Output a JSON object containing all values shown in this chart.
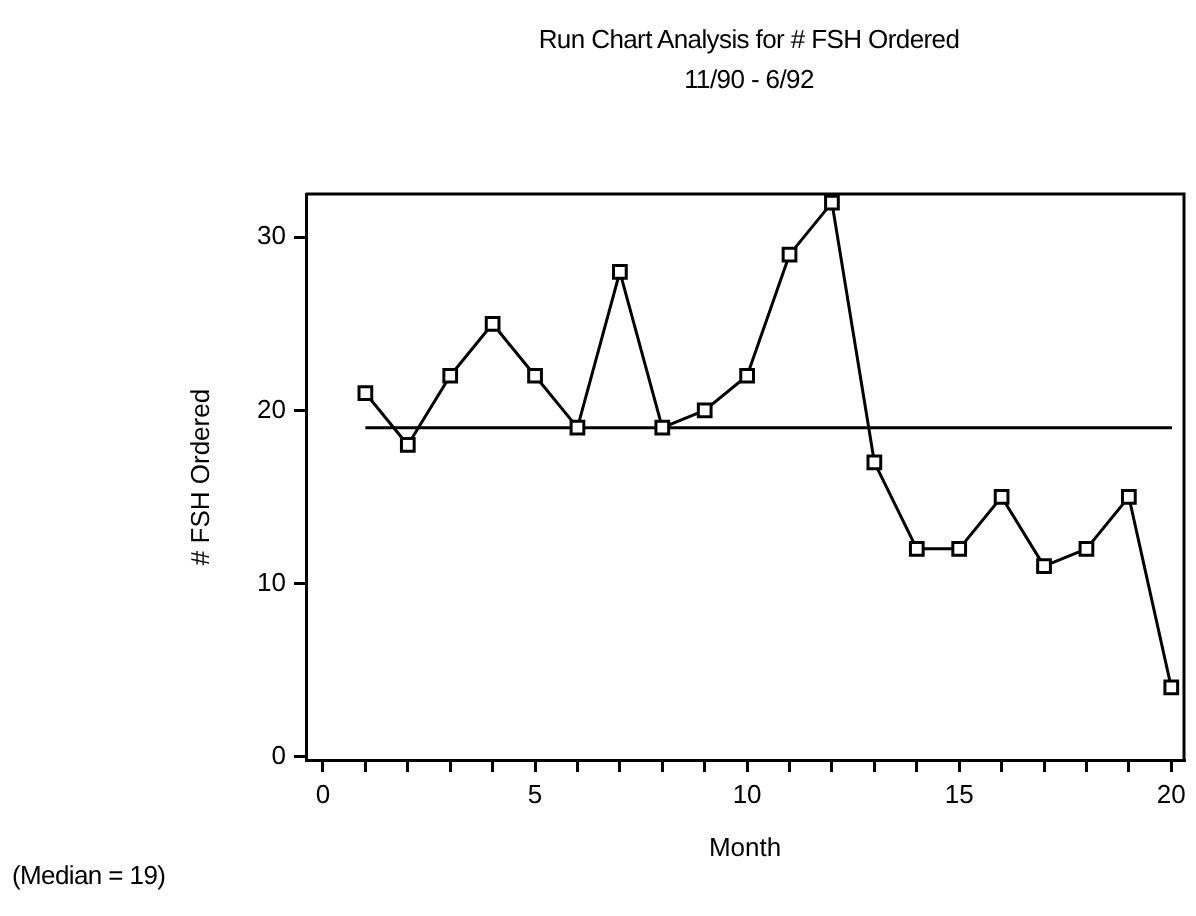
{
  "chart_data": {
    "type": "line",
    "title": "Run Chart Analysis for # FSH Ordered",
    "subtitle": "11/90 - 6/92",
    "xlabel": "Month",
    "ylabel": "# FSH Ordered",
    "x": [
      1,
      2,
      3,
      4,
      5,
      6,
      7,
      8,
      9,
      10,
      11,
      12,
      13,
      14,
      15,
      16,
      17,
      18,
      19,
      20
    ],
    "series": [
      {
        "color": "#000000",
        "values": [
          21,
          18,
          22,
          25,
          22,
          19,
          28,
          19,
          20,
          22,
          29,
          32,
          17,
          12,
          12,
          15,
          11,
          12,
          15,
          4
        ]
      }
    ],
    "xlim": [
      -0.4,
      20.3
    ],
    "ylim": [
      -0.2,
      32.5
    ],
    "xticks": [
      0,
      {
        "value": 1,
        "label": null
      },
      {
        "value": 2,
        "label": null
      },
      {
        "value": 3,
        "label": null
      },
      {
        "value": 4,
        "label": null
      },
      5,
      {
        "value": 6,
        "label": null
      },
      {
        "value": 7,
        "label": null
      },
      {
        "value": 8,
        "label": null
      },
      {
        "value": 9,
        "label": null
      },
      10,
      {
        "value": 11,
        "label": null
      },
      {
        "value": 12,
        "label": null
      },
      {
        "value": 13,
        "label": null
      },
      {
        "value": 14,
        "label": null
      },
      15,
      {
        "value": 16,
        "label": null
      },
      {
        "value": 17,
        "label": null
      },
      {
        "value": 18,
        "label": null
      },
      {
        "value": 19,
        "label": null
      },
      20
    ],
    "yticks": [
      0,
      10,
      20,
      30
    ],
    "ref_lines": [
      {
        "axis": "y",
        "value": 19,
        "color": "#000000"
      }
    ],
    "annotations": [
      "(Median = 19)"
    ],
    "marker": "square",
    "line_style": "solid",
    "grid": false,
    "legend": false
  }
}
